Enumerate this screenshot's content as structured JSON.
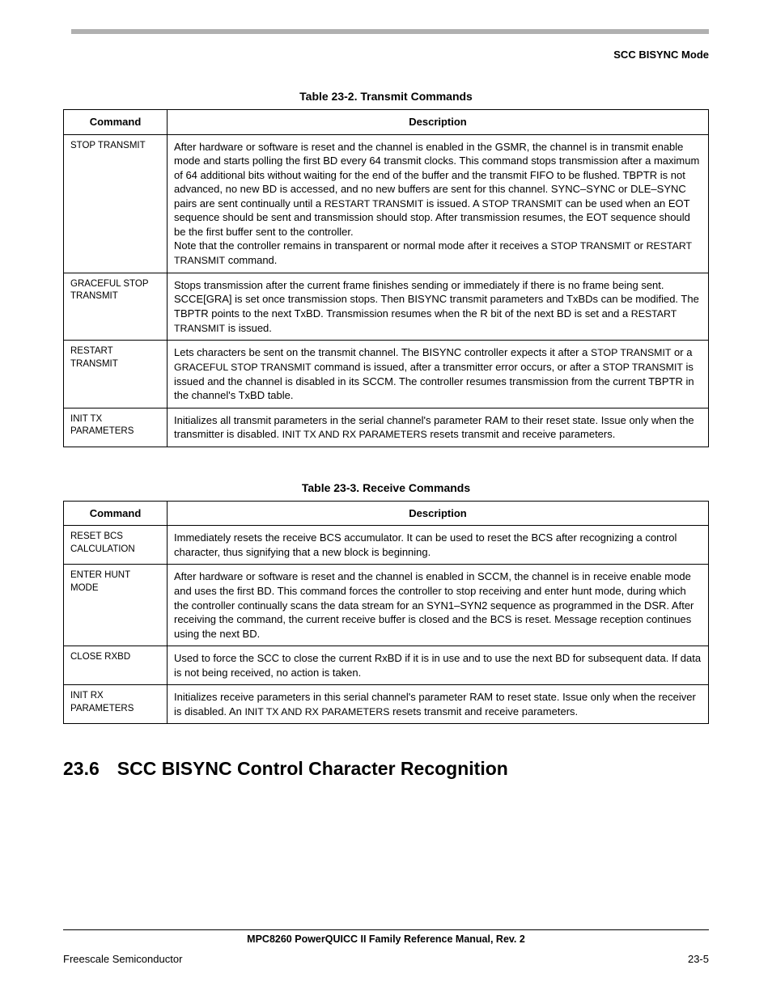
{
  "header": {
    "section_label": "SCC BISYNC Mode"
  },
  "table1": {
    "caption": "Table 23-2. Transmit Commands",
    "col_command": "Command",
    "col_description": "Description",
    "rows": {
      "r0": {
        "cmd": "STOP TRANSMIT",
        "desc_a": "After hardware or software is reset and the channel is enabled in the GSMR, the channel is in transmit enable mode and starts polling the first BD every 64 transmit clocks. This command stops transmission after a maximum of 64 additional bits without waiting for the end of the buffer and the transmit FIFO to be flushed. TBPTR is not advanced, no new BD is accessed, and no new buffers are sent for this channel. SYNC–SYNC or DLE–SYNC pairs are sent continually until a ",
        "desc_a_sc": "RESTART TRANSMIT",
        "desc_b_pre": " is issued. A ",
        "desc_b_sc": "STOP TRANSMIT",
        "desc_b_post": " can be used when an EOT sequence should be sent and transmission should stop. After transmission resumes, the EOT sequence should be the first buffer sent to the controller.",
        "desc_c_pre": "Note that the controller remains in transparent or normal mode after it receives a ",
        "desc_c_sc1": "STOP TRANSMIT",
        "desc_c_mid": " or ",
        "desc_c_sc2": "RESTART TRANSMIT",
        "desc_c_post": " command."
      },
      "r1": {
        "cmd": "GRACEFUL STOP TRANSMIT",
        "desc_pre": "Stops transmission after the current frame finishes sending or immediately if there is no frame being sent. SCCE[GRA] is set once transmission stops. Then BISYNC transmit parameters and TxBDs can be modified. The TBPTR points to the next TxBD. Transmission resumes when the R bit of the next BD is set and a ",
        "desc_sc": "RESTART TRANSMIT",
        "desc_post": " is issued."
      },
      "r2": {
        "cmd": "RESTART TRANSMIT",
        "desc_pre": "Lets characters be sent on the transmit channel. The BISYNC controller expects it after a ",
        "desc_sc1": "STOP TRANSMIT",
        "desc_mid1": " or a ",
        "desc_sc2": "GRACEFUL STOP TRANSMIT",
        "desc_mid2": " command is issued, after a transmitter error occurs, or after a ",
        "desc_sc3": "STOP TRANSMIT",
        "desc_post": " is issued and the channel is disabled in its SCCM. The controller resumes transmission from the current TBPTR in the channel's TxBD table."
      },
      "r3": {
        "cmd": "INIT TX PARAMETERS",
        "desc_pre": "Initializes all transmit parameters in the serial channel's parameter RAM to their reset state. Issue only when the transmitter is disabled. ",
        "desc_sc": "INIT TX AND RX PARAMETERS",
        "desc_post": " resets transmit and receive parameters."
      }
    }
  },
  "table2": {
    "caption": "Table 23-3. Receive Commands",
    "col_command": "Command",
    "col_description": "Description",
    "rows": {
      "r0": {
        "cmd": "RESET BCS CALCULATION",
        "desc": "Immediately resets the receive BCS accumulator. It can be used to reset the BCS after recognizing a control character, thus signifying that a new block is beginning."
      },
      "r1": {
        "cmd": "ENTER HUNT MODE",
        "desc": "After hardware or software is reset and the channel is enabled in SCCM, the channel is in receive enable mode and uses the first BD. This command forces the controller to stop receiving and enter hunt mode, during which the controller continually scans the data stream for an SYN1–SYN2 sequence as programmed in the DSR. After receiving the command, the current receive buffer is closed and the BCS is reset. Message reception continues using the next BD."
      },
      "r2": {
        "cmd": "CLOSE RXBD",
        "desc": "Used to force the SCC to close the current RxBD if it is in use and to use the next BD for subsequent data. If data is not being received, no action is taken."
      },
      "r3": {
        "cmd": "INIT RX PARAMETERS",
        "desc_pre": "Initializes receive parameters in this serial channel's parameter RAM to reset state. Issue only when the receiver is disabled. An ",
        "desc_sc": "INIT TX AND RX PARAMETERS",
        "desc_post": " resets transmit and receive parameters."
      }
    }
  },
  "section": {
    "number": "23.6",
    "title": "SCC BISYNC Control Character Recognition"
  },
  "footer": {
    "manual": "MPC8260 PowerQUICC II Family Reference Manual, Rev. 2",
    "vendor": "Freescale Semiconductor",
    "page": "23-5"
  }
}
